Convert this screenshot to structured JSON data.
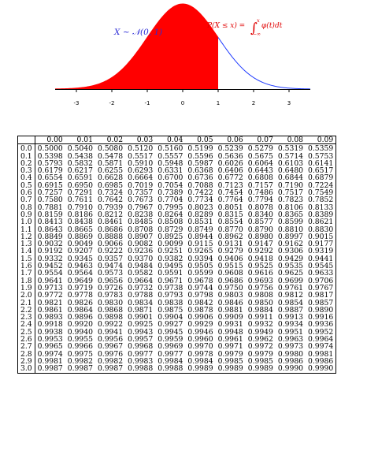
{
  "figure": {
    "dist_label": "X ∼ 𝒩(0, 1)",
    "cdf_label": "P(X ≤ x) = ",
    "integral_label": "∫",
    "integral_upper": "x",
    "integral_lower": "−∞",
    "integrand_label": "φ(t)dt",
    "colors": {
      "fill": "#ff0000",
      "curve": "#1f3bff",
      "axis": "#000000",
      "dist_label": "#2b2bd6",
      "cdf_label": "#e00000"
    },
    "shaded_upper_x": 1.0
  },
  "chart_data": {
    "type": "area",
    "function": "standard normal density",
    "x_range": [
      -3.6,
      3.6
    ],
    "shaded_up_to": 1.0,
    "x_ticks": [
      -3,
      -2,
      -1,
      0,
      1,
      2,
      3
    ],
    "x_tick_labels": [
      "-3",
      "-2",
      "-1",
      "0",
      "1",
      "2",
      "3"
    ],
    "title": "",
    "xlabel": "",
    "ylabel": ""
  },
  "table": {
    "columns": [
      "",
      "0.00",
      "0.01",
      "0.02",
      "0.03",
      "0.04",
      "0.05",
      "0.06",
      "0.07",
      "0.08",
      "0.09"
    ],
    "rows": [
      {
        "z": "0.0",
        "values": [
          "0.5000",
          "0.5040",
          "0.5080",
          "0.5120",
          "0.5160",
          "0.5199",
          "0.5239",
          "0.5279",
          "0.5319",
          "0.5359"
        ]
      },
      {
        "z": "0.1",
        "values": [
          "0.5398",
          "0.5438",
          "0.5478",
          "0.5517",
          "0.5557",
          "0.5596",
          "0.5636",
          "0.5675",
          "0.5714",
          "0.5753"
        ]
      },
      {
        "z": "0.2",
        "values": [
          "0.5793",
          "0.5832",
          "0.5871",
          "0.5910",
          "0.5948",
          "0.5987",
          "0.6026",
          "0.6064",
          "0.6103",
          "0.6141"
        ]
      },
      {
        "z": "0.3",
        "values": [
          "0.6179",
          "0.6217",
          "0.6255",
          "0.6293",
          "0.6331",
          "0.6368",
          "0.6406",
          "0.6443",
          "0.6480",
          "0.6517"
        ]
      },
      {
        "z": "0.4",
        "values": [
          "0.6554",
          "0.6591",
          "0.6628",
          "0.6664",
          "0.6700",
          "0.6736",
          "0.6772",
          "0.6808",
          "0.6844",
          "0.6879"
        ]
      },
      {
        "z": "0.5",
        "values": [
          "0.6915",
          "0.6950",
          "0.6985",
          "0.7019",
          "0.7054",
          "0.7088",
          "0.7123",
          "0.7157",
          "0.7190",
          "0.7224"
        ]
      },
      {
        "z": "0.6",
        "values": [
          "0.7257",
          "0.7291",
          "0.7324",
          "0.7357",
          "0.7389",
          "0.7422",
          "0.7454",
          "0.7486",
          "0.7517",
          "0.7549"
        ]
      },
      {
        "z": "0.7",
        "values": [
          "0.7580",
          "0.7611",
          "0.7642",
          "0.7673",
          "0.7704",
          "0.7734",
          "0.7764",
          "0.7794",
          "0.7823",
          "0.7852"
        ]
      },
      {
        "z": "0.8",
        "values": [
          "0.7881",
          "0.7910",
          "0.7939",
          "0.7967",
          "0.7995",
          "0.8023",
          "0.8051",
          "0.8078",
          "0.8106",
          "0.8133"
        ]
      },
      {
        "z": "0.9",
        "values": [
          "0.8159",
          "0.8186",
          "0.8212",
          "0.8238",
          "0.8264",
          "0.8289",
          "0.8315",
          "0.8340",
          "0.8365",
          "0.8389"
        ]
      },
      {
        "z": "1.0",
        "values": [
          "0.8413",
          "0.8438",
          "0.8461",
          "0.8485",
          "0.8508",
          "0.8531",
          "0.8554",
          "0.8577",
          "0.8599",
          "0.8621"
        ]
      },
      {
        "z": "1.1",
        "values": [
          "0.8643",
          "0.8665",
          "0.8686",
          "0.8708",
          "0.8729",
          "0.8749",
          "0.8770",
          "0.8790",
          "0.8810",
          "0.8830"
        ]
      },
      {
        "z": "1.2",
        "values": [
          "0.8849",
          "0.8869",
          "0.8888",
          "0.8907",
          "0.8925",
          "0.8944",
          "0.8962",
          "0.8980",
          "0.8997",
          "0.9015"
        ]
      },
      {
        "z": "1.3",
        "values": [
          "0.9032",
          "0.9049",
          "0.9066",
          "0.9082",
          "0.9099",
          "0.9115",
          "0.9131",
          "0.9147",
          "0.9162",
          "0.9177"
        ]
      },
      {
        "z": "1.4",
        "values": [
          "0.9192",
          "0.9207",
          "0.9222",
          "0.9236",
          "0.9251",
          "0.9265",
          "0.9279",
          "0.9292",
          "0.9306",
          "0.9319"
        ]
      },
      {
        "z": "1.5",
        "values": [
          "0.9332",
          "0.9345",
          "0.9357",
          "0.9370",
          "0.9382",
          "0.9394",
          "0.9406",
          "0.9418",
          "0.9429",
          "0.9441"
        ]
      },
      {
        "z": "1.6",
        "values": [
          "0.9452",
          "0.9463",
          "0.9474",
          "0.9484",
          "0.9495",
          "0.9505",
          "0.9515",
          "0.9525",
          "0.9535",
          "0.9545"
        ]
      },
      {
        "z": "1.7",
        "values": [
          "0.9554",
          "0.9564",
          "0.9573",
          "0.9582",
          "0.9591",
          "0.9599",
          "0.9608",
          "0.9616",
          "0.9625",
          "0.9633"
        ]
      },
      {
        "z": "1.8",
        "values": [
          "0.9641",
          "0.9649",
          "0.9656",
          "0.9664",
          "0.9671",
          "0.9678",
          "0.9686",
          "0.9693",
          "0.9699",
          "0.9706"
        ]
      },
      {
        "z": "1.9",
        "values": [
          "0.9713",
          "0.9719",
          "0.9726",
          "0.9732",
          "0.9738",
          "0.9744",
          "0.9750",
          "0.9756",
          "0.9761",
          "0.9767"
        ]
      },
      {
        "z": "2.0",
        "values": [
          "0.9772",
          "0.9778",
          "0.9783",
          "0.9788",
          "0.9793",
          "0.9798",
          "0.9803",
          "0.9808",
          "0.9812",
          "0.9817"
        ]
      },
      {
        "z": "2.1",
        "values": [
          "0.9821",
          "0.9826",
          "0.9830",
          "0.9834",
          "0.9838",
          "0.9842",
          "0.9846",
          "0.9850",
          "0.9854",
          "0.9857"
        ]
      },
      {
        "z": "2.2",
        "values": [
          "0.9861",
          "0.9864",
          "0.9868",
          "0.9871",
          "0.9875",
          "0.9878",
          "0.9881",
          "0.9884",
          "0.9887",
          "0.9890"
        ]
      },
      {
        "z": "2.3",
        "values": [
          "0.9893",
          "0.9896",
          "0.9898",
          "0.9901",
          "0.9904",
          "0.9906",
          "0.9909",
          "0.9911",
          "0.9913",
          "0.9916"
        ]
      },
      {
        "z": "2.4",
        "values": [
          "0.9918",
          "0.9920",
          "0.9922",
          "0.9925",
          "0.9927",
          "0.9929",
          "0.9931",
          "0.9932",
          "0.9934",
          "0.9936"
        ]
      },
      {
        "z": "2.5",
        "values": [
          "0.9938",
          "0.9940",
          "0.9941",
          "0.9943",
          "0.9945",
          "0.9946",
          "0.9948",
          "0.9949",
          "0.9951",
          "0.9952"
        ]
      },
      {
        "z": "2.6",
        "values": [
          "0.9953",
          "0.9955",
          "0.9956",
          "0.9957",
          "0.9959",
          "0.9960",
          "0.9961",
          "0.9962",
          "0.9963",
          "0.9964"
        ]
      },
      {
        "z": "2.7",
        "values": [
          "0.9965",
          "0.9966",
          "0.9967",
          "0.9968",
          "0.9969",
          "0.9970",
          "0.9971",
          "0.9972",
          "0.9973",
          "0.9974"
        ]
      },
      {
        "z": "2.8",
        "values": [
          "0.9974",
          "0.9975",
          "0.9976",
          "0.9977",
          "0.9977",
          "0.9978",
          "0.9979",
          "0.9979",
          "0.9980",
          "0.9981"
        ]
      },
      {
        "z": "2.9",
        "values": [
          "0.9981",
          "0.9982",
          "0.9982",
          "0.9983",
          "0.9984",
          "0.9984",
          "0.9985",
          "0.9985",
          "0.9986",
          "0.9986"
        ]
      },
      {
        "z": "3.0",
        "values": [
          "0.9987",
          "0.9987",
          "0.9987",
          "0.9988",
          "0.9988",
          "0.9989",
          "0.9989",
          "0.9989",
          "0.9990",
          "0.9990"
        ]
      }
    ]
  }
}
